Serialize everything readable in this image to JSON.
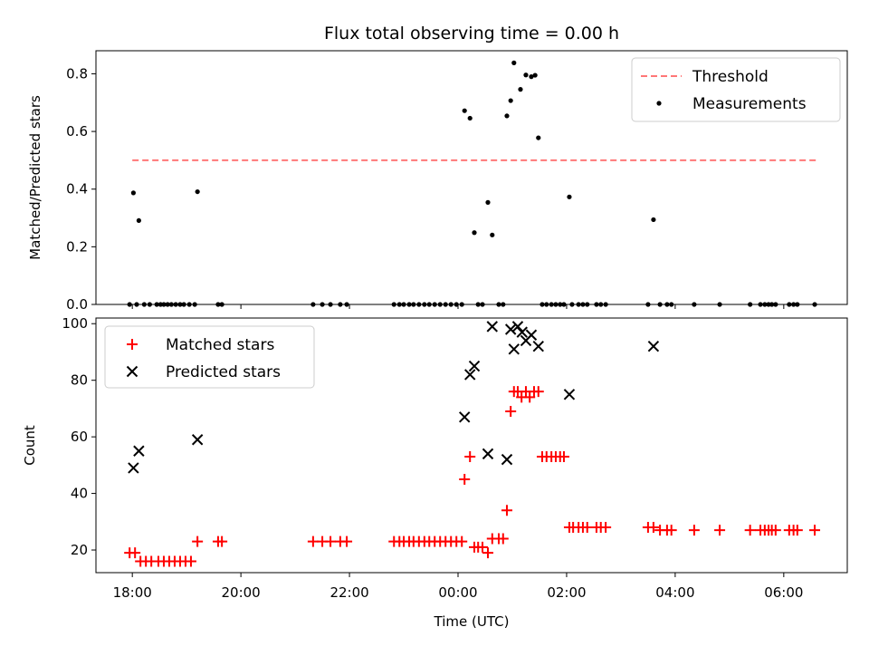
{
  "chart_data": [
    {
      "type": "scatter",
      "title": "Flux total observing time = 0.00 h",
      "xlabel": "",
      "ylabel": "Matched/Predicted stars",
      "ylim": [
        0,
        0.88
      ],
      "yticks": [
        0.0,
        0.2,
        0.4,
        0.6,
        0.8
      ],
      "ytick_labels": [
        "0.0",
        "0.2",
        "0.4",
        "0.6",
        "0.8"
      ],
      "legend_position": "top-right",
      "grid": false,
      "x_unit": "hours since 18:00 UTC",
      "series": [
        {
          "name": "Threshold",
          "style": "dashed-line",
          "color": "#ff7777",
          "x": [
            0.0,
            12.6
          ],
          "y": [
            0.5,
            0.5
          ]
        },
        {
          "name": "Measurements",
          "style": "dot",
          "color": "#000000",
          "points": [
            [
              0.02,
              0.387
            ],
            [
              0.12,
              0.291
            ],
            [
              1.2,
              0.391
            ],
            [
              6.12,
              0.672
            ],
            [
              6.22,
              0.646
            ],
            [
              6.3,
              0.249
            ],
            [
              6.55,
              0.354
            ],
            [
              6.63,
              0.241
            ],
            [
              6.9,
              0.654
            ],
            [
              6.97,
              0.707
            ],
            [
              7.03,
              0.838
            ],
            [
              7.15,
              0.746
            ],
            [
              7.25,
              0.796
            ],
            [
              7.35,
              0.79
            ],
            [
              7.42,
              0.795
            ],
            [
              7.48,
              0.578
            ],
            [
              8.05,
              0.373
            ],
            [
              9.6,
              0.294
            ],
            [
              -0.05,
              0.0
            ],
            [
              0.08,
              0.0
            ],
            [
              0.22,
              0.0
            ],
            [
              0.32,
              0.0
            ],
            [
              0.45,
              0.0
            ],
            [
              0.52,
              0.0
            ],
            [
              0.58,
              0.0
            ],
            [
              0.65,
              0.0
            ],
            [
              0.72,
              0.0
            ],
            [
              0.8,
              0.0
            ],
            [
              0.88,
              0.0
            ],
            [
              0.95,
              0.0
            ],
            [
              1.05,
              0.0
            ],
            [
              1.15,
              0.0
            ],
            [
              1.58,
              0.0
            ],
            [
              1.65,
              0.0
            ],
            [
              3.33,
              0.0
            ],
            [
              3.5,
              0.0
            ],
            [
              3.65,
              0.0
            ],
            [
              3.83,
              0.0
            ],
            [
              3.95,
              0.0
            ],
            [
              4.82,
              0.0
            ],
            [
              4.92,
              0.0
            ],
            [
              5.0,
              0.0
            ],
            [
              5.1,
              0.0
            ],
            [
              5.18,
              0.0
            ],
            [
              5.28,
              0.0
            ],
            [
              5.38,
              0.0
            ],
            [
              5.47,
              0.0
            ],
            [
              5.57,
              0.0
            ],
            [
              5.67,
              0.0
            ],
            [
              5.77,
              0.0
            ],
            [
              5.87,
              0.0
            ],
            [
              5.97,
              0.0
            ],
            [
              6.07,
              0.0
            ],
            [
              6.37,
              0.0
            ],
            [
              6.45,
              0.0
            ],
            [
              6.75,
              0.0
            ],
            [
              6.83,
              0.0
            ],
            [
              7.55,
              0.0
            ],
            [
              7.63,
              0.0
            ],
            [
              7.72,
              0.0
            ],
            [
              7.8,
              0.0
            ],
            [
              7.88,
              0.0
            ],
            [
              7.95,
              0.0
            ],
            [
              8.1,
              0.0
            ],
            [
              8.22,
              0.0
            ],
            [
              8.3,
              0.0
            ],
            [
              8.38,
              0.0
            ],
            [
              8.55,
              0.0
            ],
            [
              8.63,
              0.0
            ],
            [
              8.72,
              0.0
            ],
            [
              9.5,
              0.0
            ],
            [
              9.72,
              0.0
            ],
            [
              9.85,
              0.0
            ],
            [
              9.93,
              0.0
            ],
            [
              10.35,
              0.0
            ],
            [
              10.82,
              0.0
            ],
            [
              11.38,
              0.0
            ],
            [
              11.57,
              0.0
            ],
            [
              11.65,
              0.0
            ],
            [
              11.72,
              0.0
            ],
            [
              11.78,
              0.0
            ],
            [
              11.85,
              0.0
            ],
            [
              12.1,
              0.0
            ],
            [
              12.18,
              0.0
            ],
            [
              12.25,
              0.0
            ],
            [
              12.57,
              0.0
            ]
          ]
        }
      ]
    },
    {
      "type": "scatter",
      "title": "",
      "xlabel": "Time (UTC)",
      "ylabel": "Count",
      "ylim": [
        12,
        102
      ],
      "yticks": [
        20,
        40,
        60,
        80,
        100
      ],
      "ytick_labels": [
        "20",
        "40",
        "60",
        "80",
        "100"
      ],
      "xlim_hours": [
        -0.67,
        13.17
      ],
      "xticks_hours": [
        0,
        2,
        4,
        6,
        8,
        10,
        12
      ],
      "xtick_labels": [
        "18:00",
        "20:00",
        "22:00",
        "00:00",
        "02:00",
        "04:00",
        "06:00"
      ],
      "legend_position": "top-left",
      "grid": false,
      "x_unit": "hours since 18:00 UTC",
      "series": [
        {
          "name": "Matched stars",
          "marker": "plus",
          "color": "#ff0000",
          "points": [
            [
              -0.05,
              19
            ],
            [
              0.05,
              19
            ],
            [
              0.15,
              16
            ],
            [
              0.25,
              16
            ],
            [
              0.35,
              16
            ],
            [
              0.48,
              16
            ],
            [
              0.58,
              16
            ],
            [
              0.68,
              16
            ],
            [
              0.78,
              16
            ],
            [
              0.88,
              16
            ],
            [
              0.98,
              16
            ],
            [
              1.08,
              16
            ],
            [
              1.2,
              23
            ],
            [
              1.58,
              23
            ],
            [
              1.65,
              23
            ],
            [
              3.33,
              23
            ],
            [
              3.5,
              23
            ],
            [
              3.65,
              23
            ],
            [
              3.83,
              23
            ],
            [
              3.95,
              23
            ],
            [
              4.82,
              23
            ],
            [
              4.92,
              23
            ],
            [
              5.0,
              23
            ],
            [
              5.1,
              23
            ],
            [
              5.18,
              23
            ],
            [
              5.28,
              23
            ],
            [
              5.38,
              23
            ],
            [
              5.47,
              23
            ],
            [
              5.57,
              23
            ],
            [
              5.67,
              23
            ],
            [
              5.77,
              23
            ],
            [
              5.87,
              23
            ],
            [
              5.97,
              23
            ],
            [
              6.07,
              23
            ],
            [
              6.12,
              45
            ],
            [
              6.22,
              53
            ],
            [
              6.3,
              21
            ],
            [
              6.37,
              21
            ],
            [
              6.45,
              21
            ],
            [
              6.55,
              19
            ],
            [
              6.63,
              24
            ],
            [
              6.75,
              24
            ],
            [
              6.83,
              24
            ],
            [
              6.9,
              34
            ],
            [
              6.97,
              69
            ],
            [
              7.03,
              76
            ],
            [
              7.1,
              76
            ],
            [
              7.17,
              74
            ],
            [
              7.25,
              76
            ],
            [
              7.32,
              74
            ],
            [
              7.4,
              76
            ],
            [
              7.48,
              76
            ],
            [
              7.55,
              53
            ],
            [
              7.63,
              53
            ],
            [
              7.72,
              53
            ],
            [
              7.8,
              53
            ],
            [
              7.88,
              53
            ],
            [
              7.95,
              53
            ],
            [
              8.05,
              28
            ],
            [
              8.12,
              28
            ],
            [
              8.22,
              28
            ],
            [
              8.3,
              28
            ],
            [
              8.38,
              28
            ],
            [
              8.55,
              28
            ],
            [
              8.63,
              28
            ],
            [
              8.72,
              28
            ],
            [
              9.5,
              28
            ],
            [
              9.6,
              28
            ],
            [
              9.72,
              27
            ],
            [
              9.85,
              27
            ],
            [
              9.93,
              27
            ],
            [
              10.35,
              27
            ],
            [
              10.82,
              27
            ],
            [
              11.38,
              27
            ],
            [
              11.57,
              27
            ],
            [
              11.65,
              27
            ],
            [
              11.72,
              27
            ],
            [
              11.78,
              27
            ],
            [
              11.85,
              27
            ],
            [
              12.1,
              27
            ],
            [
              12.18,
              27
            ],
            [
              12.25,
              27
            ],
            [
              12.57,
              27
            ]
          ]
        },
        {
          "name": "Predicted stars",
          "marker": "x",
          "color": "#000000",
          "points": [
            [
              0.02,
              49
            ],
            [
              0.12,
              55
            ],
            [
              1.2,
              59
            ],
            [
              6.12,
              67
            ],
            [
              6.22,
              82
            ],
            [
              6.3,
              85
            ],
            [
              6.55,
              54
            ],
            [
              6.63,
              99
            ],
            [
              6.9,
              52
            ],
            [
              6.97,
              98
            ],
            [
              7.03,
              91
            ],
            [
              7.1,
              99
            ],
            [
              7.18,
              97
            ],
            [
              7.25,
              94
            ],
            [
              7.35,
              96
            ],
            [
              7.48,
              92
            ],
            [
              8.05,
              75
            ],
            [
              9.6,
              92
            ]
          ]
        }
      ]
    }
  ]
}
